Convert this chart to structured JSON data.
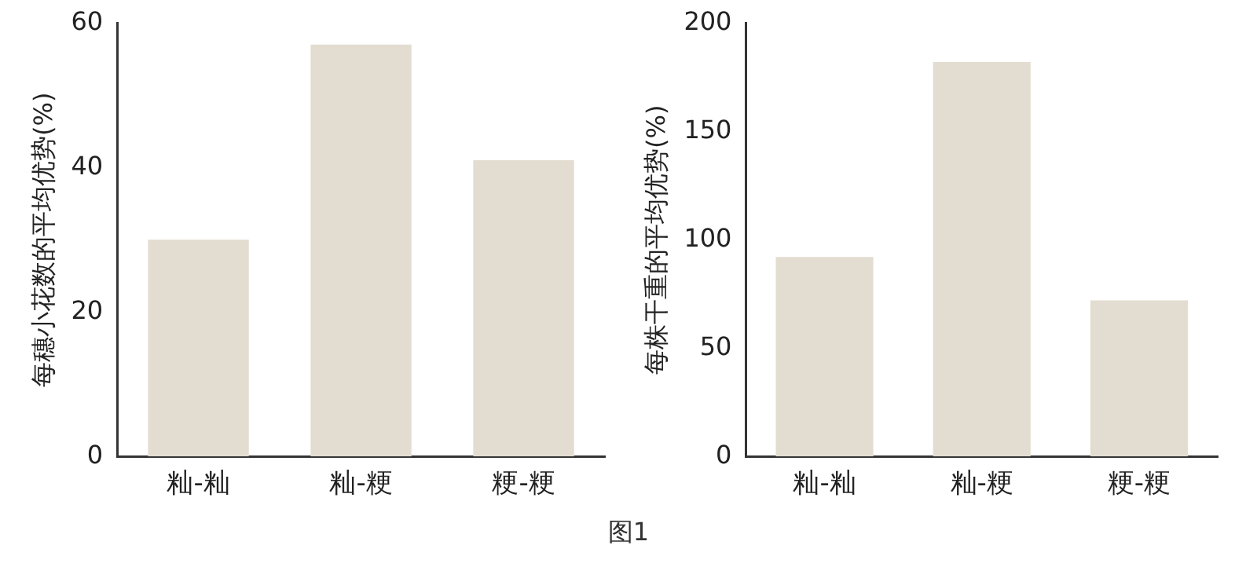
{
  "chart_data": [
    {
      "type": "bar",
      "ylabel": "每穗小花数的平均优势(%)",
      "categories": [
        "籼-籼",
        "籼-粳",
        "粳-粳"
      ],
      "values": [
        30,
        57,
        41
      ],
      "color": "#e3ddd1",
      "ylim": [
        0,
        60
      ],
      "yticks": [
        0,
        20,
        40,
        60
      ],
      "grid": false,
      "legend": false
    },
    {
      "type": "bar",
      "ylabel": "每株干重的平均优势(%)",
      "categories": [
        "籼-籼",
        "籼-粳",
        "粳-粳"
      ],
      "values": [
        92,
        182,
        72
      ],
      "color": "#e3ddd1",
      "ylim": [
        0,
        200
      ],
      "yticks": [
        0,
        50,
        100,
        150,
        200
      ],
      "grid": false,
      "legend": false,
      "annotations": [
        "图1"
      ]
    }
  ]
}
